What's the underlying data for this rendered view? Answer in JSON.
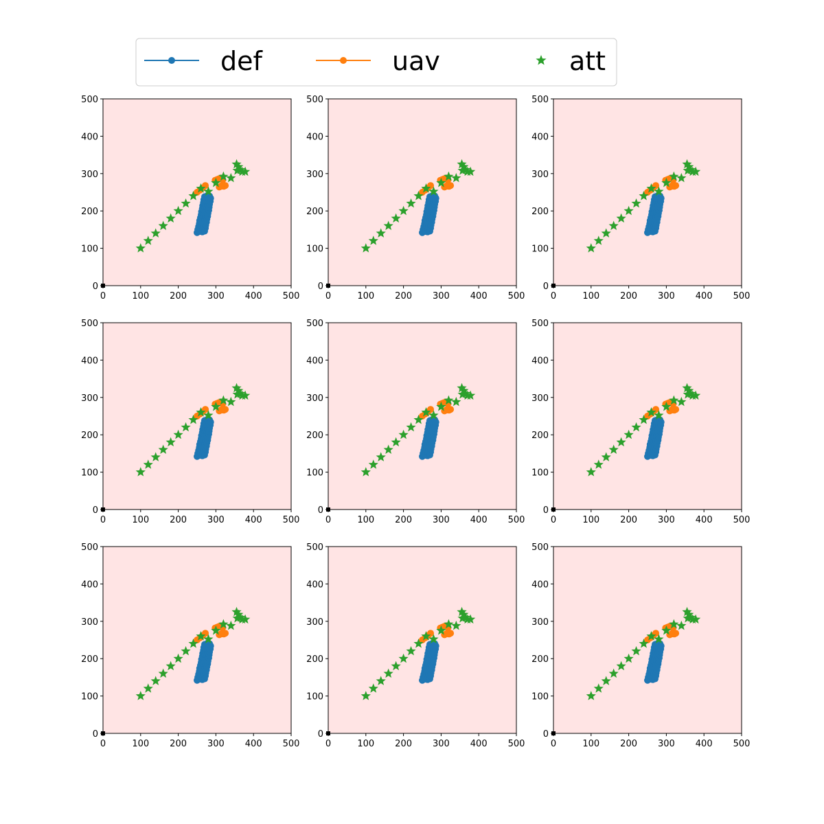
{
  "legend": {
    "items": [
      {
        "label": "def",
        "color": "#1f77b4",
        "marker": "line-dot"
      },
      {
        "label": "uav",
        "color": "#ff7f0e",
        "marker": "line-dot"
      },
      {
        "label": "att",
        "color": "#2ca02c",
        "marker": "star"
      }
    ]
  },
  "colors": {
    "axes_background": "#ffe4e4",
    "def": "#1f77b4",
    "uav": "#ff7f0e",
    "att": "#2ca02c",
    "origin_marker": "#000000"
  },
  "chart_data": {
    "type": "scatter",
    "grid": false,
    "legend_position": "top-center",
    "layout": "3x3 grid of identical panels",
    "panel_count": 9,
    "xlim": [
      0,
      500
    ],
    "ylim": [
      0,
      500
    ],
    "xticks": [
      0,
      100,
      200,
      300,
      400,
      500
    ],
    "yticks": [
      0,
      100,
      200,
      300,
      400,
      500
    ],
    "series": [
      {
        "name": "def",
        "marker": "circle",
        "points": [
          [
            250,
            142
          ],
          [
            252,
            150
          ],
          [
            254,
            158
          ],
          [
            256,
            166
          ],
          [
            257,
            174
          ],
          [
            259,
            182
          ],
          [
            261,
            190
          ],
          [
            262,
            198
          ],
          [
            264,
            206
          ],
          [
            265,
            214
          ],
          [
            267,
            222
          ],
          [
            268,
            230
          ],
          [
            270,
            238
          ],
          [
            257,
            145
          ],
          [
            259,
            153
          ],
          [
            261,
            161
          ],
          [
            262,
            169
          ],
          [
            264,
            177
          ],
          [
            266,
            185
          ],
          [
            267,
            193
          ],
          [
            269,
            201
          ],
          [
            271,
            209
          ],
          [
            272,
            217
          ],
          [
            274,
            225
          ],
          [
            275,
            233
          ],
          [
            277,
            241
          ],
          [
            264,
            144
          ],
          [
            266,
            152
          ],
          [
            267,
            160
          ],
          [
            269,
            168
          ],
          [
            271,
            176
          ],
          [
            272,
            184
          ],
          [
            274,
            192
          ],
          [
            275,
            200
          ],
          [
            277,
            208
          ],
          [
            278,
            216
          ],
          [
            280,
            224
          ],
          [
            281,
            232
          ],
          [
            283,
            240
          ],
          [
            270,
            146
          ],
          [
            272,
            154
          ],
          [
            273,
            162
          ],
          [
            275,
            170
          ],
          [
            276,
            178
          ],
          [
            278,
            186
          ],
          [
            279,
            194
          ],
          [
            281,
            202
          ],
          [
            282,
            210
          ],
          [
            283,
            218
          ],
          [
            285,
            226
          ],
          [
            286,
            234
          ]
        ]
      },
      {
        "name": "uav",
        "marker": "circle",
        "points": [
          [
            250,
            250
          ],
          [
            258,
            256
          ],
          [
            265,
            262
          ],
          [
            272,
            268
          ],
          [
            298,
            282
          ],
          [
            303,
            284
          ],
          [
            308,
            286
          ],
          [
            313,
            288
          ],
          [
            318,
            283
          ],
          [
            316,
            268
          ],
          [
            321,
            266
          ],
          [
            325,
            268
          ],
          [
            309,
            264
          ],
          [
            313,
            266
          ]
        ]
      },
      {
        "name": "att",
        "marker": "star",
        "points": [
          [
            100,
            100
          ],
          [
            120,
            120
          ],
          [
            140,
            140
          ],
          [
            160,
            160
          ],
          [
            180,
            180
          ],
          [
            200,
            200
          ],
          [
            220,
            220
          ],
          [
            240,
            240
          ],
          [
            260,
            260
          ],
          [
            280,
            252
          ],
          [
            300,
            275
          ],
          [
            320,
            292
          ],
          [
            340,
            288
          ],
          [
            355,
            325
          ],
          [
            360,
            318
          ],
          [
            365,
            310
          ],
          [
            370,
            305
          ],
          [
            378,
            305
          ],
          [
            357,
            308
          ]
        ]
      },
      {
        "name": "origin",
        "marker": "square",
        "points": [
          [
            0,
            0
          ]
        ]
      }
    ]
  }
}
